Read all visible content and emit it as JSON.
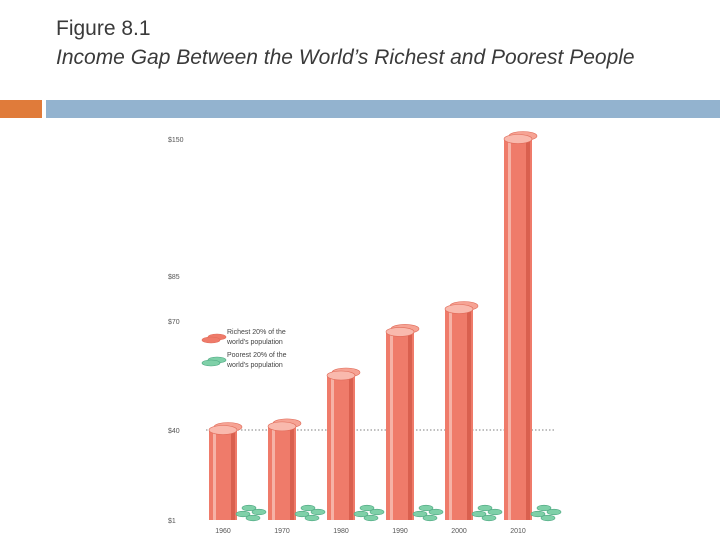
{
  "slide": {
    "title_line1": "Figure 8.1",
    "title_line2": "Income Gap Between the World’s Richest and Poorest People"
  },
  "colors": {
    "accent_orange": "#e07b3a",
    "accent_blue": "#93b3cf",
    "richest": "#ef7b6a",
    "poorest": "#7fd0a8"
  },
  "chart_data": {
    "type": "bar",
    "categories": [
      "1960",
      "1970",
      "1980",
      "1990",
      "2000",
      "2010"
    ],
    "series": [
      {
        "name": "Richest 20% of the world's population",
        "values": [
          40,
          41,
          55,
          67,
          74,
          150
        ]
      },
      {
        "name": "Poorest 20% of the world's population",
        "values": [
          1,
          1,
          1,
          1,
          1,
          1
        ]
      }
    ],
    "y_tick_labels": [
      "$1",
      "$40",
      "$70",
      "$85",
      "$150"
    ],
    "legend": [
      "Richest 20% of the world's population",
      "Poorest 20% of the world's population"
    ],
    "legend_placement": "left",
    "grid": false
  }
}
